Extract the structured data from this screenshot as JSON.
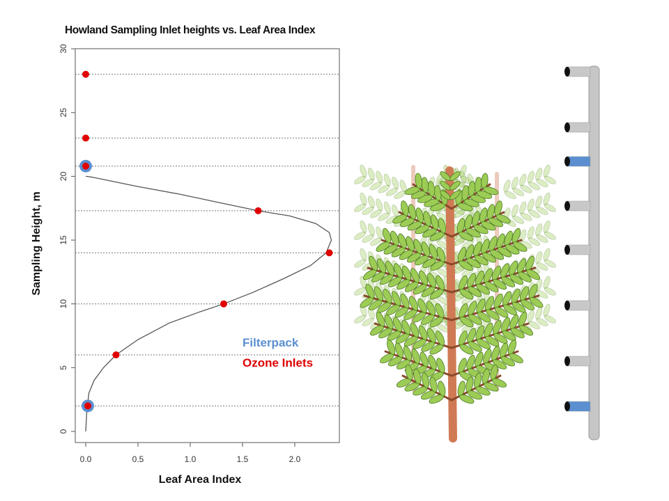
{
  "chart_data": {
    "type": "scatter",
    "title": "Howland Sampling Inlet heights vs. Leaf Area Index",
    "xlabel": "Leaf Area Index",
    "ylabel": "Sampling Height, m",
    "xlim": [
      -0.1,
      2.4
    ],
    "ylim": [
      -1.5,
      30
    ],
    "xticks": [
      "0.0",
      "0.5",
      "1.0",
      "1.5",
      "2.0"
    ],
    "xtick_values": [
      0,
      0.5,
      1.0,
      1.5,
      2.0
    ],
    "yticks": [
      "0",
      "5",
      "10",
      "15",
      "20",
      "25",
      "30"
    ],
    "ytick_values": [
      0,
      5,
      10,
      15,
      20,
      25,
      30
    ],
    "inlet_heights": [
      28,
      23,
      20.8,
      17.3,
      14,
      10,
      6,
      2
    ],
    "series": [
      {
        "name": "Ozone Inlets",
        "color": "#e00000",
        "x": [
          0,
          0,
          0,
          1.65,
          2.33,
          1.32,
          0.29,
          0.02
        ],
        "y": [
          28,
          23,
          20.8,
          17.3,
          14,
          10,
          6,
          2
        ]
      },
      {
        "name": "Filterpack",
        "color": "#5b8fd0",
        "x": [
          0,
          0.02
        ],
        "y": [
          20.8,
          2
        ]
      },
      {
        "name": "LAI profile",
        "color": "#555555",
        "type": "line",
        "x": [
          0,
          0.01,
          0.03,
          0.08,
          0.17,
          0.29,
          0.5,
          0.8,
          1.1,
          1.32,
          1.6,
          1.9,
          2.15,
          2.3,
          2.35,
          2.33,
          2.2,
          1.95,
          1.65,
          1.3,
          0.9,
          0.5,
          0.2,
          0.05,
          0
        ],
        "y": [
          0,
          1.5,
          3,
          4,
          5,
          6,
          7.2,
          8.5,
          9.4,
          10,
          10.9,
          12,
          13,
          14,
          15,
          15.6,
          16.3,
          16.9,
          17.3,
          17.9,
          18.6,
          19.2,
          19.7,
          19.95,
          20
        ]
      }
    ],
    "legend": [
      {
        "label": "Filterpack",
        "color": "#5b8fd0"
      },
      {
        "label": "Ozone Inlets",
        "color": "#e00000"
      }
    ],
    "legend_position": "center-right",
    "grid": "dotted horizontal lines at inlet heights"
  },
  "tower": {
    "arms": [
      "ozone",
      "ozone",
      "filterpack",
      "ozone",
      "ozone",
      "ozone",
      "ozone",
      "filterpack"
    ],
    "colors": {
      "ozone": "#c8c8c8",
      "filterpack": "#5b8fd0"
    }
  }
}
